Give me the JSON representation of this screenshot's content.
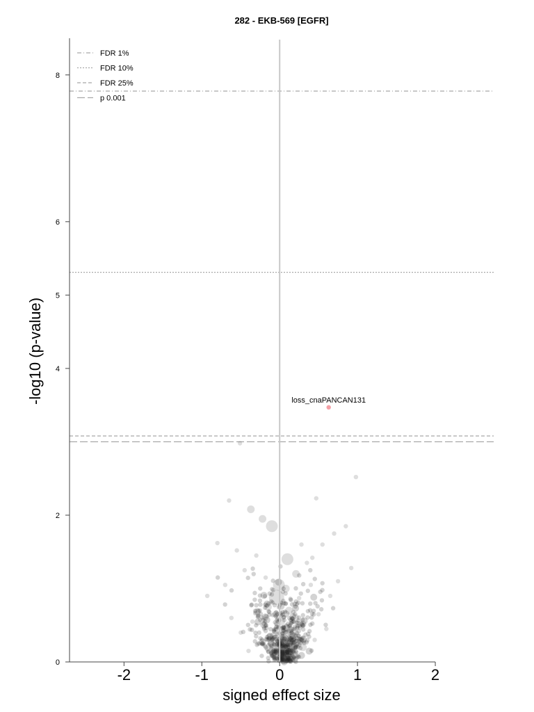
{
  "chart_data": {
    "type": "scatter",
    "title": "282 - EKB-569 [EGFR]",
    "xlabel": "signed effect size",
    "ylabel": "-log10 (p-value)",
    "xlim": [
      -2.7,
      2.75
    ],
    "ylim": [
      0,
      8.5
    ],
    "xticks": [
      -2,
      -1,
      0,
      1,
      2
    ],
    "xtick_labels": [
      "-2",
      "-1",
      "0",
      "1",
      "2"
    ],
    "yticks": [
      0,
      2,
      4,
      5,
      6,
      8
    ],
    "ytick_labels": [
      "0",
      "2",
      "4",
      "5",
      "6",
      "8"
    ],
    "vertical_line_x": 0,
    "grid": false,
    "legend_placement": "top-left",
    "thresholds": [
      {
        "name": "FDR 1%",
        "y": 7.78,
        "dash": "dashdot"
      },
      {
        "name": "FDR 10%",
        "y": 5.31,
        "dash": "dotted"
      },
      {
        "name": "FDR 25%",
        "y": 3.08,
        "dash": "dashed"
      },
      {
        "name": "p 0.001",
        "y": 3.0,
        "dash": "longdash"
      }
    ],
    "highlight": {
      "label": "loss_cnaPANCAN131",
      "x": 0.63,
      "y": 3.47,
      "color": "#f4a0a6"
    },
    "points": [
      [
        0.98,
        2.52,
        1
      ],
      [
        -0.51,
        2.98,
        1
      ],
      [
        -0.65,
        2.2,
        1
      ],
      [
        -0.37,
        2.08,
        2
      ],
      [
        0.47,
        2.23,
        1
      ],
      [
        -0.22,
        1.95,
        2
      ],
      [
        0.1,
        1.4,
        3
      ],
      [
        -0.1,
        1.85,
        3
      ],
      [
        -0.8,
        1.62,
        1
      ],
      [
        0.21,
        1.2,
        2
      ],
      [
        -0.01,
        1.05,
        3
      ],
      [
        -0.04,
        0.88,
        4
      ],
      [
        0.08,
        1.0,
        2
      ],
      [
        0.35,
        1.35,
        1
      ],
      [
        0.42,
        1.42,
        1
      ],
      [
        0.55,
        1.6,
        1
      ],
      [
        0.92,
        1.28,
        1
      ],
      [
        -0.55,
        1.52,
        1
      ],
      [
        -0.3,
        1.45,
        1
      ],
      [
        0.7,
        1.75,
        1
      ],
      [
        -0.93,
        0.9,
        1
      ],
      [
        0.25,
        0.87,
        1
      ],
      [
        0.05,
        0.3,
        3
      ],
      [
        -0.05,
        0.1,
        3
      ],
      [
        0.15,
        0.15,
        2
      ],
      [
        0.2,
        0.6,
        2
      ],
      [
        -0.2,
        0.45,
        1
      ],
      [
        0.3,
        0.2,
        2
      ],
      [
        -0.35,
        0.55,
        1
      ],
      [
        0.5,
        0.65,
        1
      ],
      [
        -0.5,
        0.4,
        1
      ],
      [
        0.65,
        0.9,
        1
      ],
      [
        0.4,
        1.05,
        1
      ],
      [
        -0.15,
        0.75,
        2
      ],
      [
        0.12,
        0.7,
        2
      ],
      [
        -0.28,
        0.25,
        1
      ],
      [
        0.45,
        0.3,
        1
      ],
      [
        -0.4,
        0.15,
        1
      ],
      [
        0.6,
        0.45,
        1
      ],
      [
        -0.62,
        0.6,
        1
      ],
      [
        0.75,
        1.1,
        1
      ],
      [
        -0.7,
        1.05,
        1
      ],
      [
        0.85,
        1.85,
        1
      ],
      [
        -0.18,
        1.15,
        1
      ],
      [
        0.28,
        1.6,
        1
      ],
      [
        -0.45,
        1.25,
        1
      ],
      [
        0.05,
        0.05,
        2
      ],
      [
        -0.08,
        0.35,
        2
      ],
      [
        0.18,
        0.4,
        2
      ],
      [
        0.02,
        0.55,
        2
      ]
    ],
    "cloud_seed": 7
  }
}
